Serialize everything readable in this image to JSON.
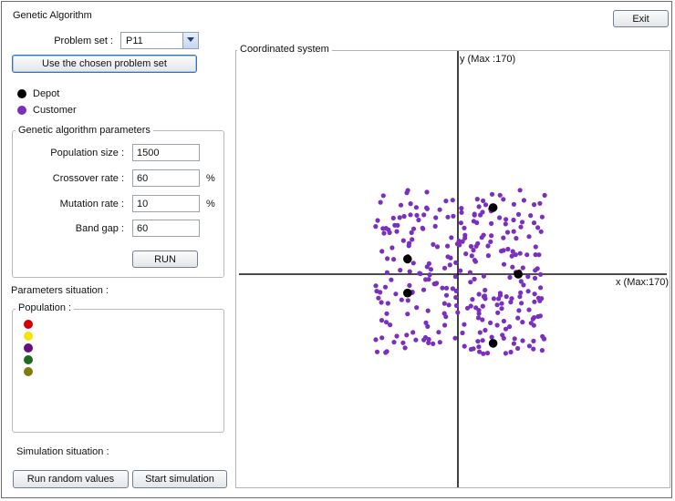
{
  "window": {
    "title": "Genetic Algorithm"
  },
  "exit_button": "Exit",
  "problem_set": {
    "label": "Problem set :",
    "value": "P11"
  },
  "use_button": "Use the chosen problem set",
  "legend": {
    "depot": "Depot",
    "customer": "Customer"
  },
  "colors": {
    "depot": "#000000",
    "customer": "#7b2fbf",
    "axis": "#111111"
  },
  "ga_params": {
    "title": "Genetic algorithm parameters",
    "population_size": {
      "label": "Population size :",
      "value": "1500"
    },
    "crossover_rate": {
      "label": "Crossover rate :",
      "value": "60",
      "unit": "%"
    },
    "mutation_rate": {
      "label": "Mutation rate :",
      "value": "10",
      "unit": "%"
    },
    "band_gap": {
      "label": "Band gap :",
      "value": "60"
    },
    "run_label": "RUN"
  },
  "parameters_situation": {
    "label": "Parameters situation :"
  },
  "population": {
    "title": "Population :",
    "dots": [
      "#d40000",
      "#f2e600",
      "#6a0d7a",
      "#1e6b1e",
      "#7e7c10"
    ]
  },
  "simulation_situation": {
    "label": "Simulation situation :"
  },
  "buttons": {
    "run_random": "Run random values",
    "start_sim": "Start simulation"
  },
  "coord": {
    "title": "Coordinated system",
    "y_label": "y (Max :170)",
    "x_label": "x (Max:170)",
    "x_max": 170,
    "y_max": 170,
    "depots": [
      [
        -40,
        12
      ],
      [
        -40,
        -15
      ],
      [
        48,
        0
      ],
      [
        28,
        53
      ],
      [
        28,
        -55
      ]
    ]
  }
}
